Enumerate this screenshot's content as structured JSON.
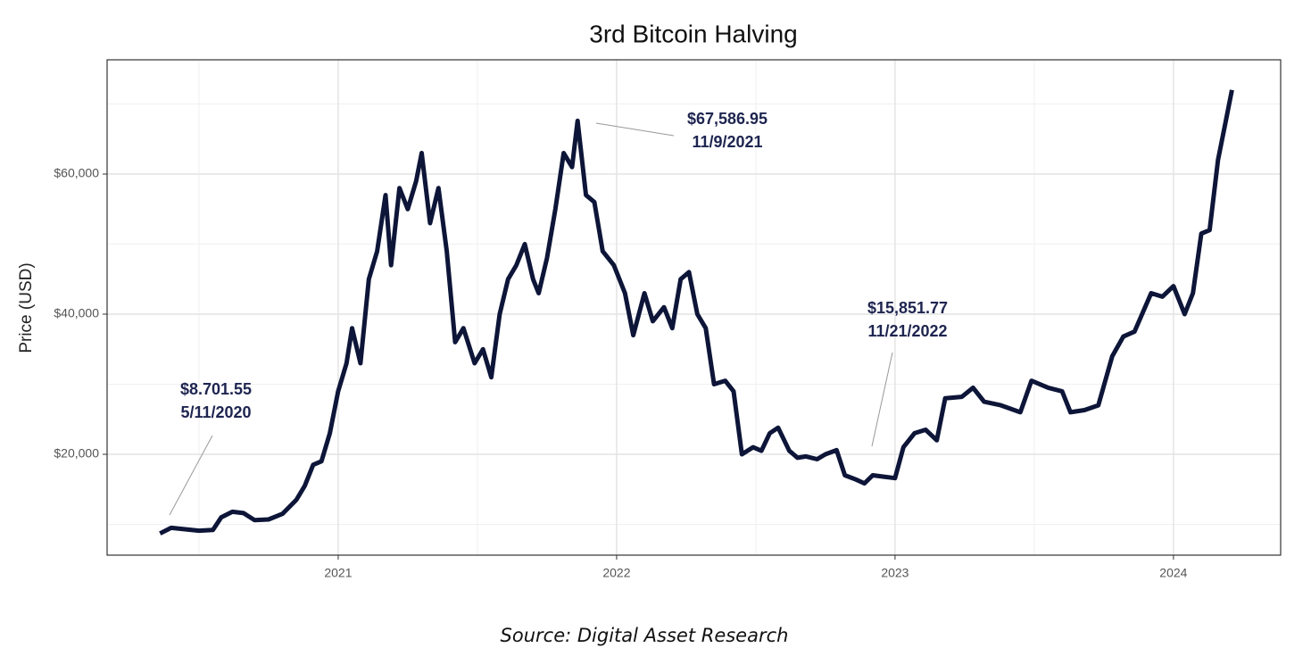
{
  "chart_data": {
    "type": "line",
    "title": "3rd Bitcoin Halving",
    "ylabel": "Price (USD)",
    "source": "Source: Digital Asset Research",
    "color": "#0d1538",
    "grid": true,
    "xlim": [
      2020.17,
      2024.385
    ],
    "xticks": [
      2021,
      2022,
      2023,
      2024
    ],
    "xminor": [
      2020.5,
      2021.5,
      2022.5,
      2023.5
    ],
    "ylim": [
      5605,
      76306
    ],
    "yticks": [
      {
        "value": 20000,
        "label": "$20,000"
      },
      {
        "value": 40000,
        "label": "$40,000"
      },
      {
        "value": 60000,
        "label": "$60,000"
      }
    ],
    "yminor": [
      10000,
      30000,
      50000,
      70000
    ],
    "x": [
      2020.36,
      2020.4,
      2020.45,
      2020.5,
      2020.55,
      2020.58,
      2020.62,
      2020.66,
      2020.7,
      2020.75,
      2020.8,
      2020.85,
      2020.88,
      2020.91,
      2020.94,
      2020.97,
      2021.0,
      2021.03,
      2021.05,
      2021.08,
      2021.11,
      2021.14,
      2021.17,
      2021.19,
      2021.22,
      2021.25,
      2021.28,
      2021.3,
      2021.33,
      2021.36,
      2021.39,
      2021.42,
      2021.45,
      2021.49,
      2021.52,
      2021.55,
      2021.58,
      2021.61,
      2021.64,
      2021.67,
      2021.7,
      2021.72,
      2021.75,
      2021.78,
      2021.81,
      2021.84,
      2021.86,
      2021.89,
      2021.92,
      2021.95,
      2021.99,
      2022.03,
      2022.06,
      2022.1,
      2022.13,
      2022.17,
      2022.2,
      2022.23,
      2022.26,
      2022.29,
      2022.32,
      2022.35,
      2022.39,
      2022.42,
      2022.45,
      2022.49,
      2022.52,
      2022.55,
      2022.58,
      2022.62,
      2022.65,
      2022.68,
      2022.72,
      2022.75,
      2022.79,
      2022.82,
      2022.86,
      2022.89,
      2022.92,
      2022.96,
      2023.0,
      2023.03,
      2023.07,
      2023.11,
      2023.15,
      2023.18,
      2023.24,
      2023.28,
      2023.32,
      2023.38,
      2023.45,
      2023.49,
      2023.55,
      2023.6,
      2023.63,
      2023.68,
      2023.73,
      2023.78,
      2023.82,
      2023.86,
      2023.92,
      2023.96,
      2024.0,
      2024.04,
      2024.07,
      2024.1,
      2024.13,
      2024.16,
      2024.19,
      2024.21
    ],
    "values": [
      8701.55,
      9500,
      9300,
      9100,
      9200,
      11000,
      11800,
      11600,
      10600,
      10700,
      11500,
      13500,
      15500,
      18500,
      19000,
      23000,
      29000,
      33000,
      38000,
      33000,
      45000,
      49000,
      57000,
      47000,
      58000,
      55000,
      59000,
      63000,
      53000,
      58000,
      49000,
      36000,
      38000,
      33000,
      35000,
      31000,
      40000,
      45000,
      47000,
      50000,
      45000,
      43000,
      48000,
      55000,
      63000,
      61000,
      67586.95,
      57000,
      56000,
      49000,
      47000,
      43000,
      37000,
      43000,
      39000,
      41000,
      38000,
      45000,
      46000,
      40000,
      38000,
      30000,
      30500,
      29000,
      20000,
      21000,
      20500,
      23000,
      23800,
      20500,
      19500,
      19700,
      19300,
      20000,
      20600,
      17000,
      16400,
      15851.77,
      17000,
      16800,
      16600,
      21000,
      23000,
      23500,
      22000,
      28000,
      28200,
      29500,
      27500,
      27000,
      26000,
      30500,
      29500,
      29000,
      26000,
      26300,
      27000,
      34000,
      36800,
      37500,
      43000,
      42500,
      44000,
      40000,
      43000,
      51500,
      52000,
      62000,
      68000,
      72000
    ],
    "annotations": [
      {
        "x": 2020.36,
        "y": 8701.55,
        "label": "$8.701.55",
        "date": "5/11/2020"
      },
      {
        "x": 2021.86,
        "y": 67586.95,
        "label": "$67,586.95",
        "date": "11/9/2021"
      },
      {
        "x": 2022.89,
        "y": 15851.77,
        "label": "$15,851.77",
        "date": "11/21/2022"
      }
    ]
  }
}
